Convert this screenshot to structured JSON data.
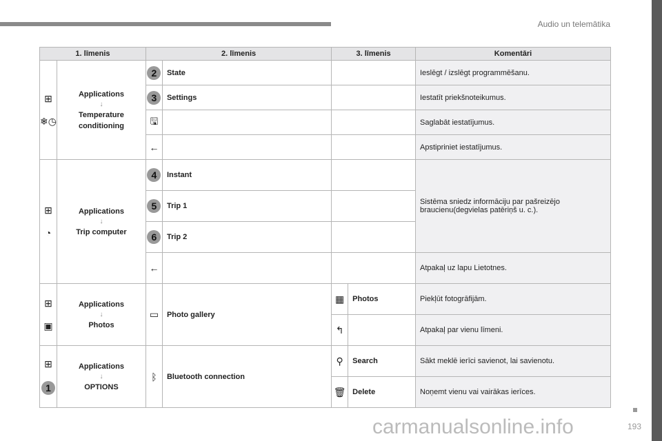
{
  "header": {
    "section": "Audio un telemātika",
    "page": "193"
  },
  "watermark": "carmanualsonline.info",
  "table": {
    "headers": [
      "1. līmenis",
      "2. līmenis",
      "3. līmenis",
      "Komentāri"
    ],
    "g1": {
      "l1": "Applications",
      "l1b": "Temperature conditioning",
      "r": [
        {
          "num": "2",
          "label": "State",
          "comment": "Ieslēgt / izslēgt programmēšanu."
        },
        {
          "num": "3",
          "label": "Settings",
          "comment": "Iestatīt priekšnoteikumus."
        },
        {
          "comment": "Saglabāt iestatījumus."
        },
        {
          "comment": "Apstipriniet iestatījumus."
        }
      ]
    },
    "g2": {
      "l1": "Applications",
      "l1b": "Trip computer",
      "r": [
        {
          "num": "4",
          "label": "Instant"
        },
        {
          "num": "5",
          "label": "Trip 1"
        },
        {
          "num": "6",
          "label": "Trip 2"
        }
      ],
      "comment": "Sistēma sniedz informāciju par pašreizējo braucienu(degvielas patēriņš u. c.).",
      "back": "Atpakaļ uz lapu Lietotnes."
    },
    "g3": {
      "l1": "Applications",
      "l1b": "Photos",
      "l2": "Photo gallery",
      "r": [
        {
          "label": "Photos",
          "comment": "Piekļūt fotogrāfijām."
        },
        {
          "comment": "Atpakaļ par vienu līmeni."
        }
      ]
    },
    "g4": {
      "l1": "Applications",
      "l1b": "OPTIONS",
      "num": "1",
      "l2": "Bluetooth connection",
      "r": [
        {
          "label": "Search",
          "comment": "Sākt meklē ierīci savienot, lai savienotu."
        },
        {
          "label": "Delete",
          "comment": "Noņemt vienu vai vairākas ierīces."
        }
      ]
    }
  },
  "icons": {
    "arrow": "↓",
    "apps": "apps-grid-icon"
  }
}
